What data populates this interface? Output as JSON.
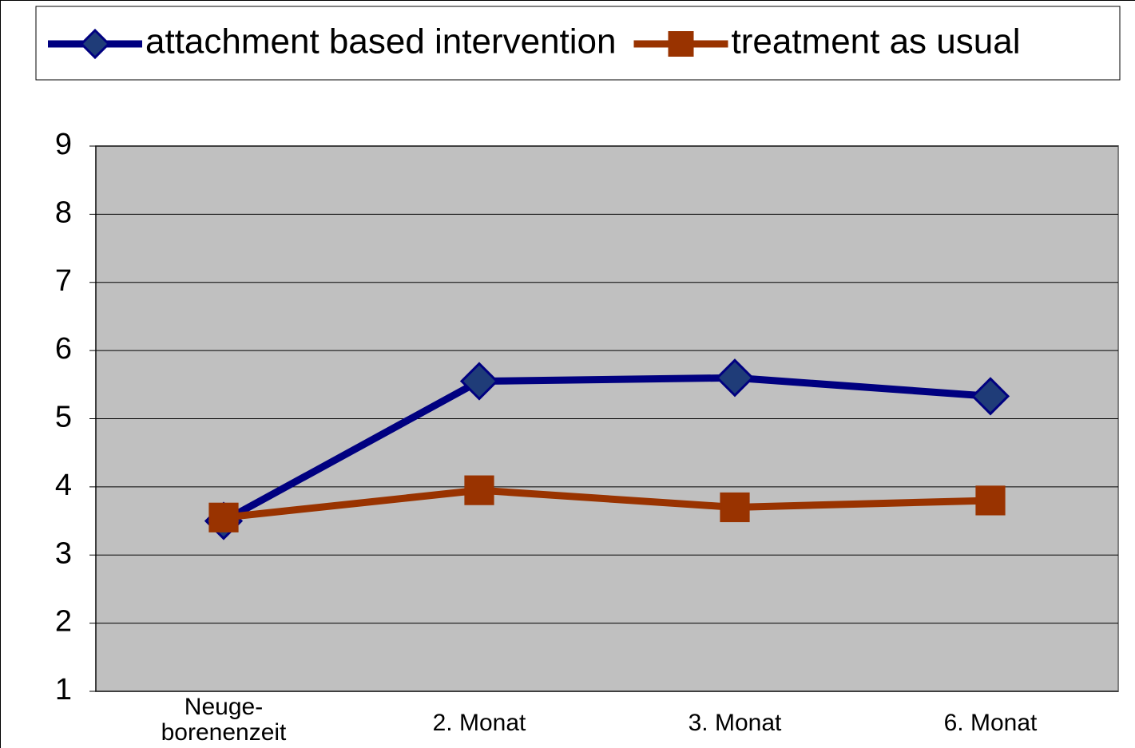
{
  "chart_data": {
    "type": "line",
    "categories": [
      "Neuge-\nborenenzeit",
      "2. Monat",
      "3. Monat",
      "6. Monat"
    ],
    "series": [
      {
        "name": "attachment based intervention",
        "color": "#000080",
        "marker": "diamond",
        "values": [
          3.5,
          5.55,
          5.6,
          5.33
        ]
      },
      {
        "name": "treatment as usual",
        "color": "#993300",
        "marker": "square",
        "values": [
          3.55,
          3.95,
          3.7,
          3.8
        ]
      }
    ],
    "ylim": [
      1,
      9
    ],
    "yticks": [
      1,
      2,
      3,
      4,
      5,
      6,
      7,
      8,
      9
    ],
    "grid": true,
    "legend": "top"
  }
}
